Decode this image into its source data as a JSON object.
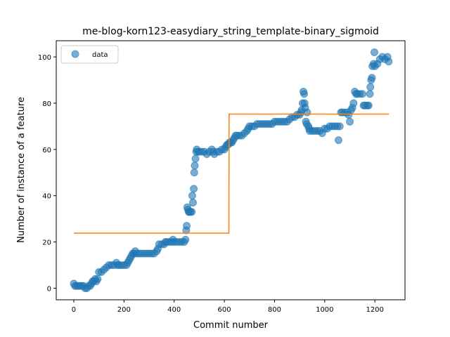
{
  "chart_data": {
    "type": "scatter",
    "title": "me-blog-korn123-easydiary_string_template-binary_sigmoid",
    "xlabel": "Commit number",
    "ylabel": "Number of instance of a feature",
    "xlim": [
      -70,
      1320
    ],
    "ylim": [
      -5,
      107
    ],
    "xticks": [
      0,
      200,
      400,
      600,
      800,
      1000,
      1200
    ],
    "yticks": [
      0,
      20,
      40,
      60,
      80,
      100
    ],
    "grid": false,
    "legend": {
      "position": "top-left",
      "entries": [
        "data"
      ]
    },
    "colors": {
      "data": "#1f77b4",
      "fit": "#ff7f0e"
    },
    "series": [
      {
        "name": "data",
        "kind": "scatter",
        "points": [
          [
            0,
            2
          ],
          [
            5,
            1
          ],
          [
            10,
            1
          ],
          [
            18,
            1
          ],
          [
            25,
            1
          ],
          [
            32,
            1
          ],
          [
            38,
            1
          ],
          [
            45,
            0
          ],
          [
            52,
            0
          ],
          [
            58,
            1
          ],
          [
            65,
            1
          ],
          [
            70,
            2
          ],
          [
            75,
            3
          ],
          [
            80,
            3
          ],
          [
            85,
            4
          ],
          [
            90,
            3
          ],
          [
            95,
            4
          ],
          [
            100,
            7
          ],
          [
            110,
            7
          ],
          [
            120,
            8
          ],
          [
            130,
            9
          ],
          [
            140,
            10
          ],
          [
            150,
            10
          ],
          [
            160,
            10
          ],
          [
            170,
            11
          ],
          [
            175,
            10
          ],
          [
            180,
            10
          ],
          [
            190,
            10
          ],
          [
            200,
            10
          ],
          [
            210,
            10
          ],
          [
            215,
            11
          ],
          [
            220,
            12
          ],
          [
            225,
            13
          ],
          [
            230,
            14
          ],
          [
            235,
            15
          ],
          [
            240,
            15
          ],
          [
            245,
            16
          ],
          [
            250,
            15
          ],
          [
            260,
            15
          ],
          [
            270,
            15
          ],
          [
            280,
            15
          ],
          [
            290,
            15
          ],
          [
            300,
            15
          ],
          [
            310,
            15
          ],
          [
            320,
            15
          ],
          [
            330,
            16
          ],
          [
            335,
            17
          ],
          [
            340,
            19
          ],
          [
            350,
            19
          ],
          [
            360,
            19
          ],
          [
            365,
            20
          ],
          [
            370,
            20
          ],
          [
            380,
            20
          ],
          [
            390,
            20
          ],
          [
            395,
            21
          ],
          [
            400,
            20
          ],
          [
            410,
            20
          ],
          [
            420,
            20
          ],
          [
            430,
            20
          ],
          [
            440,
            20
          ],
          [
            445,
            21
          ],
          [
            448,
            25
          ],
          [
            450,
            27
          ],
          [
            452,
            35
          ],
          [
            455,
            34
          ],
          [
            458,
            33
          ],
          [
            460,
            33
          ],
          [
            465,
            33
          ],
          [
            470,
            33
          ],
          [
            472,
            40
          ],
          [
            475,
            37
          ],
          [
            478,
            43
          ],
          [
            480,
            50
          ],
          [
            482,
            53
          ],
          [
            485,
            56
          ],
          [
            488,
            59
          ],
          [
            490,
            60
          ],
          [
            495,
            59
          ],
          [
            500,
            59
          ],
          [
            510,
            59
          ],
          [
            520,
            59
          ],
          [
            530,
            58
          ],
          [
            540,
            59
          ],
          [
            550,
            60
          ],
          [
            555,
            59
          ],
          [
            560,
            58
          ],
          [
            570,
            59
          ],
          [
            580,
            59
          ],
          [
            590,
            60
          ],
          [
            600,
            60
          ],
          [
            605,
            61
          ],
          [
            610,
            62
          ],
          [
            615,
            62
          ],
          [
            620,
            63
          ],
          [
            625,
            63
          ],
          [
            630,
            63
          ],
          [
            635,
            64
          ],
          [
            640,
            65
          ],
          [
            645,
            66
          ],
          [
            650,
            66
          ],
          [
            660,
            66
          ],
          [
            670,
            66
          ],
          [
            680,
            67
          ],
          [
            690,
            68
          ],
          [
            695,
            69
          ],
          [
            700,
            70
          ],
          [
            710,
            70
          ],
          [
            720,
            70
          ],
          [
            730,
            71
          ],
          [
            740,
            71
          ],
          [
            750,
            71
          ],
          [
            760,
            71
          ],
          [
            770,
            71
          ],
          [
            780,
            71
          ],
          [
            790,
            71
          ],
          [
            800,
            72
          ],
          [
            810,
            72
          ],
          [
            820,
            72
          ],
          [
            830,
            72
          ],
          [
            840,
            72
          ],
          [
            850,
            72
          ],
          [
            860,
            73
          ],
          [
            870,
            74
          ],
          [
            880,
            74
          ],
          [
            890,
            75
          ],
          [
            900,
            75
          ],
          [
            905,
            76
          ],
          [
            908,
            77
          ],
          [
            912,
            80
          ],
          [
            915,
            85
          ],
          [
            918,
            84
          ],
          [
            920,
            80
          ],
          [
            922,
            78
          ],
          [
            925,
            72
          ],
          [
            928,
            71
          ],
          [
            930,
            76
          ],
          [
            935,
            70
          ],
          [
            938,
            69
          ],
          [
            940,
            68
          ],
          [
            950,
            68
          ],
          [
            960,
            68
          ],
          [
            970,
            68
          ],
          [
            980,
            68
          ],
          [
            990,
            67
          ],
          [
            1000,
            69
          ],
          [
            1010,
            69
          ],
          [
            1020,
            70
          ],
          [
            1030,
            70
          ],
          [
            1040,
            70
          ],
          [
            1050,
            70
          ],
          [
            1055,
            64
          ],
          [
            1060,
            70
          ],
          [
            1065,
            76
          ],
          [
            1070,
            76
          ],
          [
            1080,
            76
          ],
          [
            1090,
            76
          ],
          [
            1095,
            75
          ],
          [
            1100,
            72
          ],
          [
            1105,
            77
          ],
          [
            1110,
            78
          ],
          [
            1115,
            80
          ],
          [
            1120,
            85
          ],
          [
            1125,
            84
          ],
          [
            1130,
            84
          ],
          [
            1140,
            84
          ],
          [
            1150,
            84
          ],
          [
            1155,
            79
          ],
          [
            1160,
            79
          ],
          [
            1170,
            79
          ],
          [
            1175,
            79
          ],
          [
            1180,
            84
          ],
          [
            1182,
            87
          ],
          [
            1185,
            90
          ],
          [
            1188,
            91
          ],
          [
            1190,
            96
          ],
          [
            1195,
            97
          ],
          [
            1198,
            102
          ],
          [
            1200,
            96
          ],
          [
            1210,
            97
          ],
          [
            1220,
            99
          ],
          [
            1230,
            100
          ],
          [
            1240,
            99
          ],
          [
            1250,
            100
          ],
          [
            1255,
            98
          ]
        ]
      },
      {
        "name": "",
        "kind": "line",
        "points": [
          [
            0,
            23.8
          ],
          [
            618,
            23.8
          ],
          [
            619,
            75.3
          ],
          [
            1256,
            75.3
          ]
        ]
      }
    ]
  }
}
